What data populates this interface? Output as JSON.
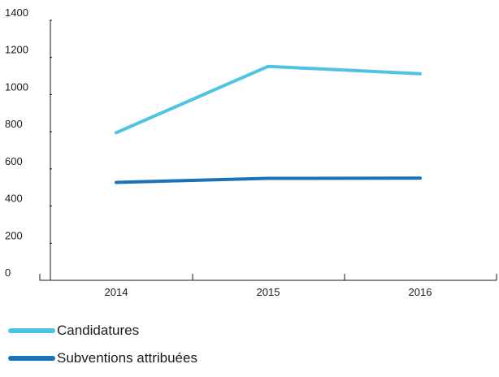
{
  "chart_data": {
    "type": "line",
    "x": [
      "2014",
      "2015",
      "2016"
    ],
    "ylim": [
      0,
      1400
    ],
    "yticks": [
      0,
      200,
      400,
      600,
      800,
      1000,
      1200,
      1400
    ],
    "grid": false,
    "legend_position": "bottom-left",
    "series": [
      {
        "name": "Candidatures",
        "values": [
          795,
          1152,
          1112
        ],
        "color": "#4fc3e4"
      },
      {
        "name": "Subventions attribuées",
        "values": [
          527,
          549,
          550
        ],
        "color": "#1a73b8"
      }
    ]
  }
}
